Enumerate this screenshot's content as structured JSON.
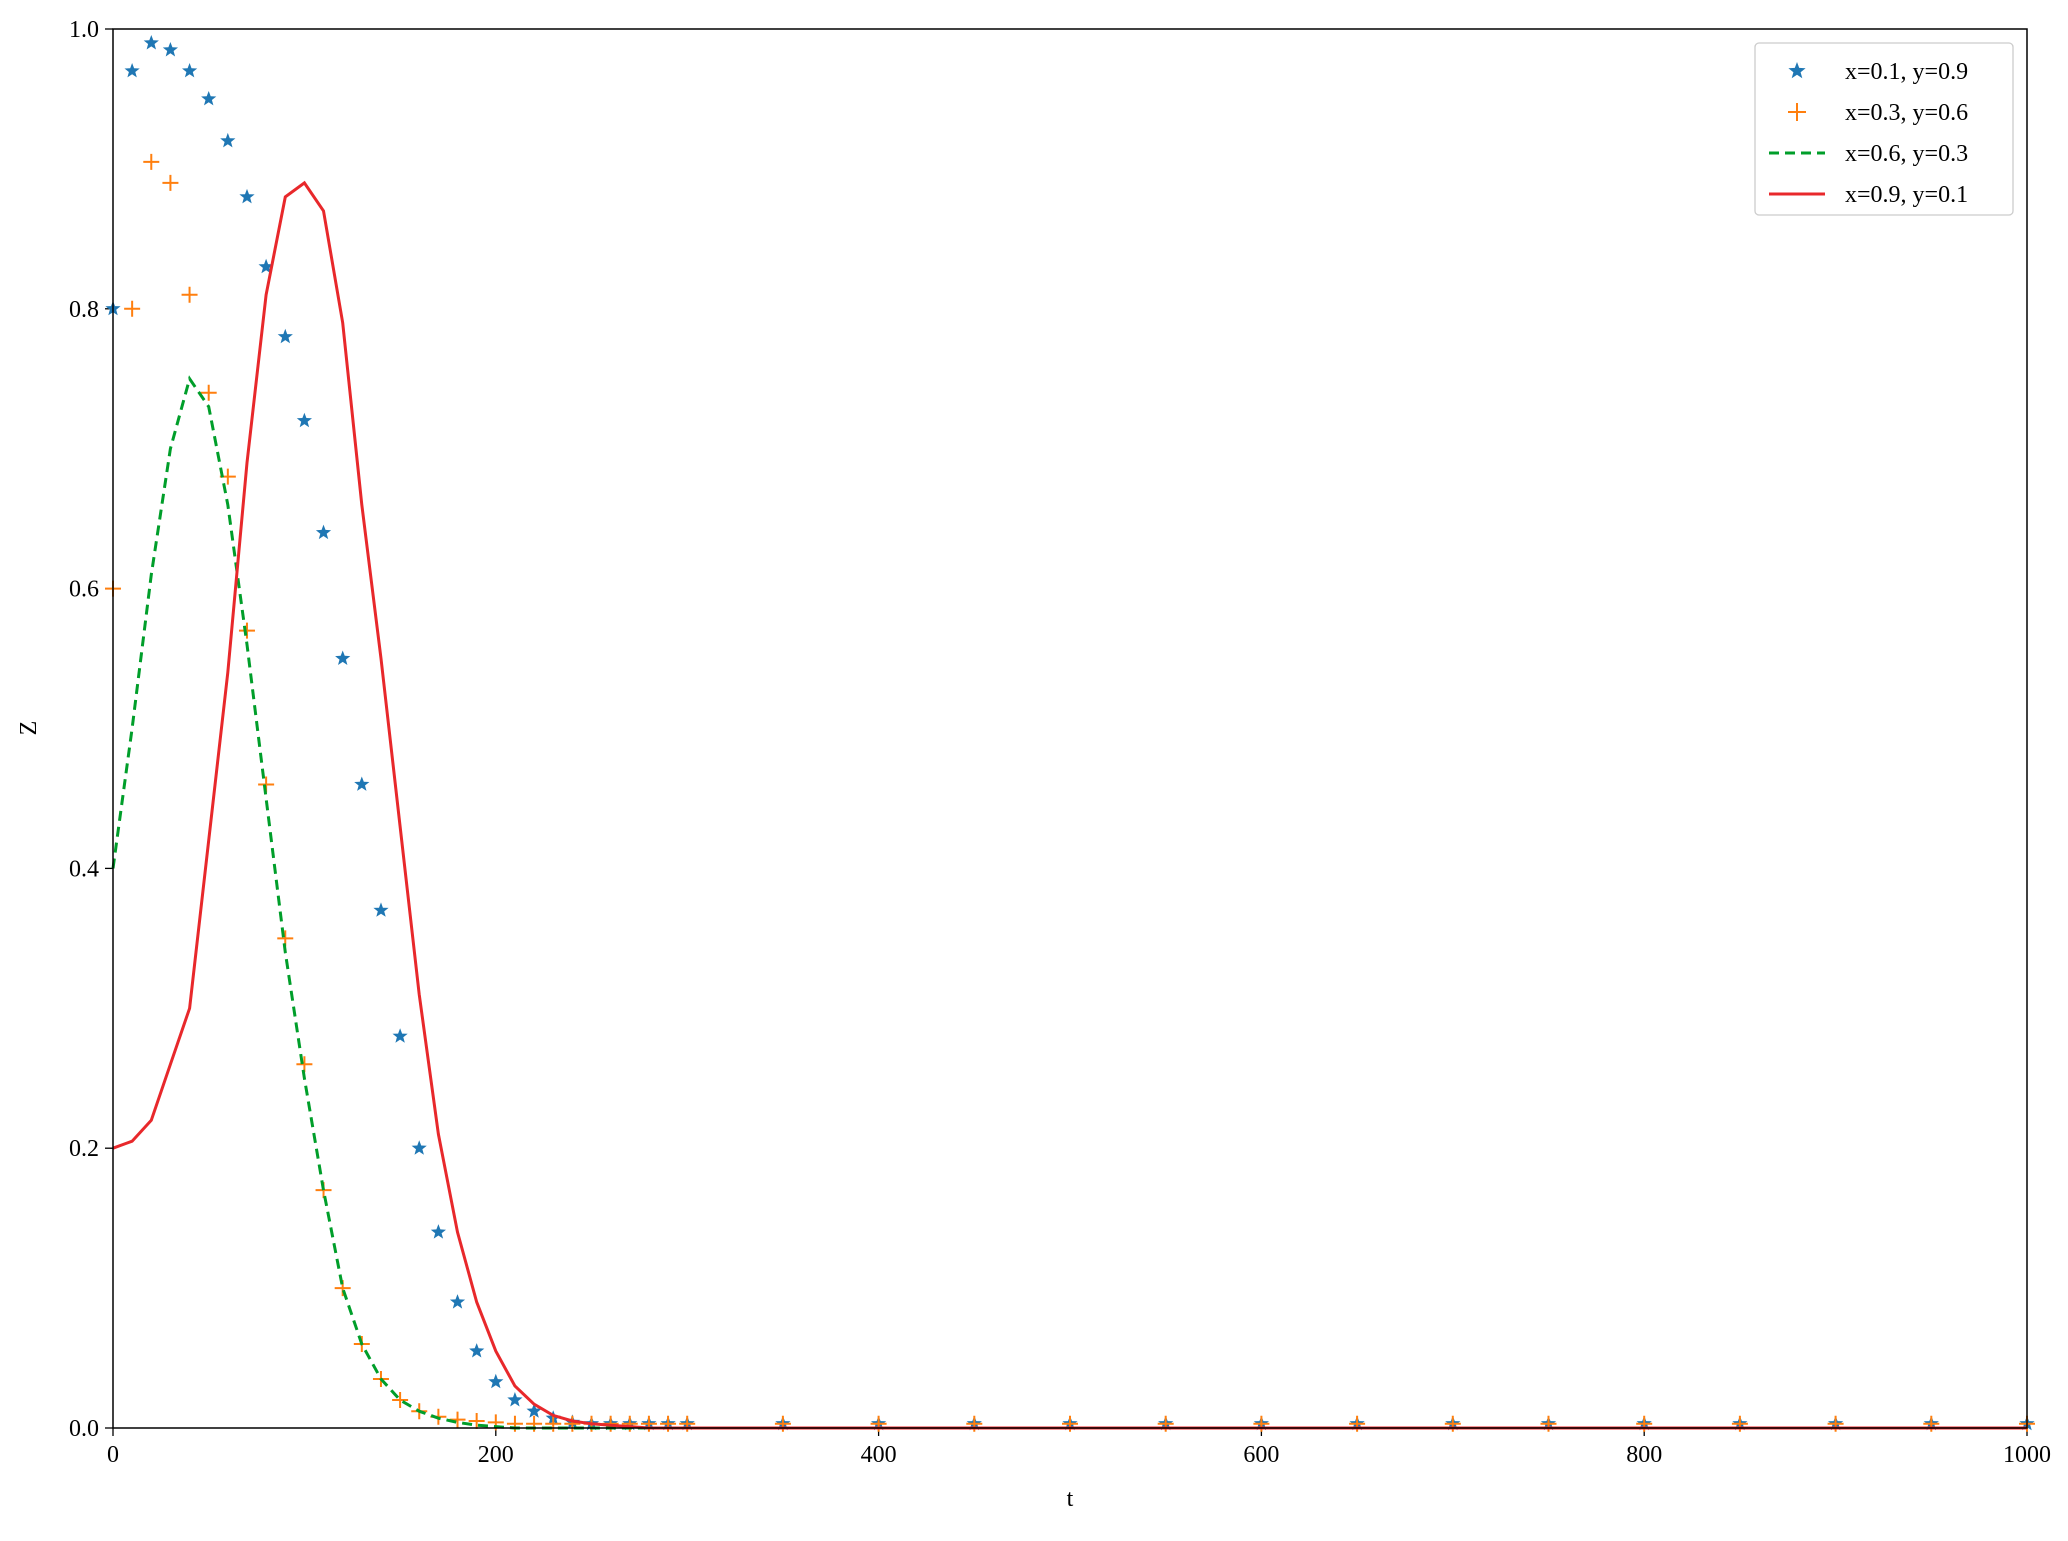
{
  "chart_data": {
    "type": "line",
    "xlabel": "t",
    "ylabel": "Z",
    "xlim": [
      0,
      1000
    ],
    "ylim": [
      0,
      1
    ],
    "xticks": [
      0,
      200,
      400,
      600,
      800,
      1000
    ],
    "yticks": [
      {
        "value": 0,
        "label": "0.0"
      },
      0.2,
      0.4,
      0.6,
      0.8,
      {
        "value": 1,
        "label": "1.0"
      }
    ],
    "legend": "upper right",
    "x": [
      0,
      10,
      20,
      30,
      40,
      50,
      60,
      70,
      80,
      90,
      100,
      110,
      120,
      130,
      140,
      150,
      160,
      170,
      180,
      190,
      200,
      210,
      220,
      230,
      240,
      250,
      260,
      270,
      280,
      290,
      300,
      350,
      400,
      450,
      500,
      550,
      600,
      650,
      700,
      750,
      800,
      850,
      900,
      950,
      1000
    ],
    "series": [
      {
        "name": "x=0.1, y=0.9",
        "color": "#1f77b4",
        "marker": "*",
        "linestyle": "none",
        "values": [
          0.8,
          0.97,
          0.99,
          0.985,
          0.97,
          0.95,
          0.92,
          0.88,
          0.83,
          0.78,
          0.72,
          0.64,
          0.55,
          0.46,
          0.37,
          0.28,
          0.2,
          0.14,
          0.09,
          0.055,
          0.033,
          0.02,
          0.012,
          0.007,
          0.004,
          0.003,
          0.003,
          0.003,
          0.003,
          0.003,
          0.003,
          0.003,
          0.003,
          0.003,
          0.003,
          0.003,
          0.003,
          0.003,
          0.003,
          0.003,
          0.003,
          0.003,
          0.003,
          0.003,
          0.003
        ]
      },
      {
        "name": "x=0.3, y=0.6",
        "color": "#ff7f0e",
        "marker": "+",
        "linestyle": "none",
        "values": [
          0.6,
          0.8,
          0.905,
          0.89,
          0.81,
          0.74,
          0.68,
          0.57,
          0.46,
          0.35,
          0.26,
          0.17,
          0.1,
          0.06,
          0.035,
          0.02,
          0.012,
          0.008,
          0.006,
          0.005,
          0.004,
          0.003,
          0.003,
          0.003,
          0.003,
          0.003,
          0.003,
          0.003,
          0.003,
          0.003,
          0.003,
          0.003,
          0.003,
          0.003,
          0.003,
          0.003,
          0.003,
          0.003,
          0.003,
          0.003,
          0.003,
          0.003,
          0.003,
          0.003,
          0.003
        ]
      },
      {
        "name": "x=0.6, y=0.3",
        "color": "#009e2a",
        "marker": null,
        "linestyle": "--",
        "values": [
          0.4,
          0.5,
          0.61,
          0.7,
          0.75,
          0.73,
          0.66,
          0.56,
          0.45,
          0.34,
          0.25,
          0.17,
          0.1,
          0.06,
          0.035,
          0.02,
          0.012,
          0.007,
          0.004,
          0.002,
          0.001,
          0,
          0,
          0,
          0,
          0,
          0,
          0,
          0,
          0,
          0,
          0,
          0,
          0,
          0,
          0,
          0,
          0,
          0,
          0,
          0,
          0,
          0,
          0,
          0
        ]
      },
      {
        "name": "x=0.9, y=0.1",
        "color": "#e8282b",
        "marker": null,
        "linestyle": "-",
        "values": [
          0.2,
          0.205,
          0.22,
          0.26,
          0.3,
          0.42,
          0.54,
          0.69,
          0.81,
          0.88,
          0.89,
          0.87,
          0.79,
          0.66,
          0.55,
          0.43,
          0.31,
          0.21,
          0.14,
          0.09,
          0.055,
          0.03,
          0.017,
          0.009,
          0.005,
          0.003,
          0.002,
          0.001,
          0,
          0,
          0,
          0,
          0,
          0,
          0,
          0,
          0,
          0,
          0,
          0,
          0,
          0,
          0,
          0,
          0
        ]
      }
    ]
  }
}
